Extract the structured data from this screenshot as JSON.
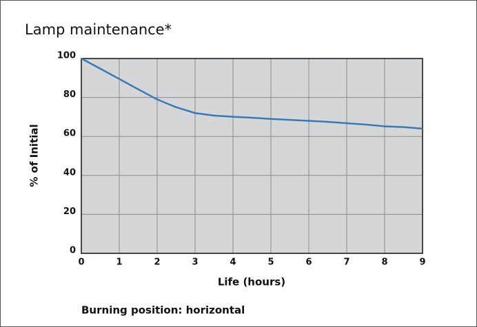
{
  "chart_data": {
    "type": "line",
    "title": "Lamp maintenance*",
    "x_label": "Life (hours)",
    "y_label": "% of Initial",
    "annotation": "Burning position: horizontal",
    "x": [
      0,
      0.5,
      1,
      1.5,
      2,
      2.5,
      3,
      3.5,
      4,
      4.5,
      5,
      5.5,
      6,
      6.5,
      7,
      7.5,
      8,
      8.5,
      9
    ],
    "series": [
      {
        "name": "Lamp maintenance",
        "color": "#3a78b5",
        "values": [
          100,
          94.8,
          89.5,
          84.2,
          79,
          75,
          72,
          70.7,
          70.1,
          69.6,
          69,
          68.5,
          68,
          67.5,
          66.8,
          66.1,
          65.2,
          64.8,
          64
        ]
      }
    ],
    "xlim": [
      0,
      9
    ],
    "xticks": [
      0,
      1,
      2,
      3,
      4,
      5,
      6,
      7,
      8,
      9
    ],
    "ylim": [
      0,
      100
    ],
    "yticks": [
      0,
      20,
      40,
      60,
      80,
      100
    ],
    "grid": true
  }
}
